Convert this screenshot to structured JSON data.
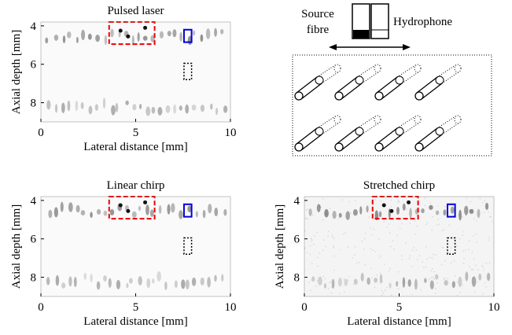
{
  "chart_data": [
    {
      "type": "image",
      "title": "Pulsed laser",
      "x_label": "Lateral distance [mm]",
      "y_label": "Axial depth [mm]",
      "xlim": [
        0,
        10
      ],
      "ylim": [
        3.8,
        9
      ],
      "xticks": [
        0,
        5,
        10
      ],
      "yticks": [
        4,
        6,
        8
      ],
      "y_inverted": true
    },
    {
      "type": "image",
      "title": "Linear chirp",
      "x_label": "Lateral distance [mm]",
      "y_label": "Axial depth [mm]",
      "xlim": [
        0,
        10
      ],
      "ylim": [
        3.8,
        9
      ],
      "xticks": [
        0,
        5,
        10
      ],
      "yticks": [
        4,
        6,
        8
      ],
      "y_inverted": true
    },
    {
      "type": "image",
      "title": "Stretched chirp",
      "x_label": "Lateral distance [mm]",
      "y_label": "Axial depth [mm]",
      "xlim": [
        0,
        10
      ],
      "ylim": [
        3.8,
        9
      ],
      "xticks": [
        0,
        5,
        10
      ],
      "yticks": [
        4,
        6,
        8
      ],
      "y_inverted": true
    }
  ],
  "diagram": {
    "source_label": [
      "Source",
      "fibre"
    ],
    "hydrophone_label": "Hydrophone"
  }
}
